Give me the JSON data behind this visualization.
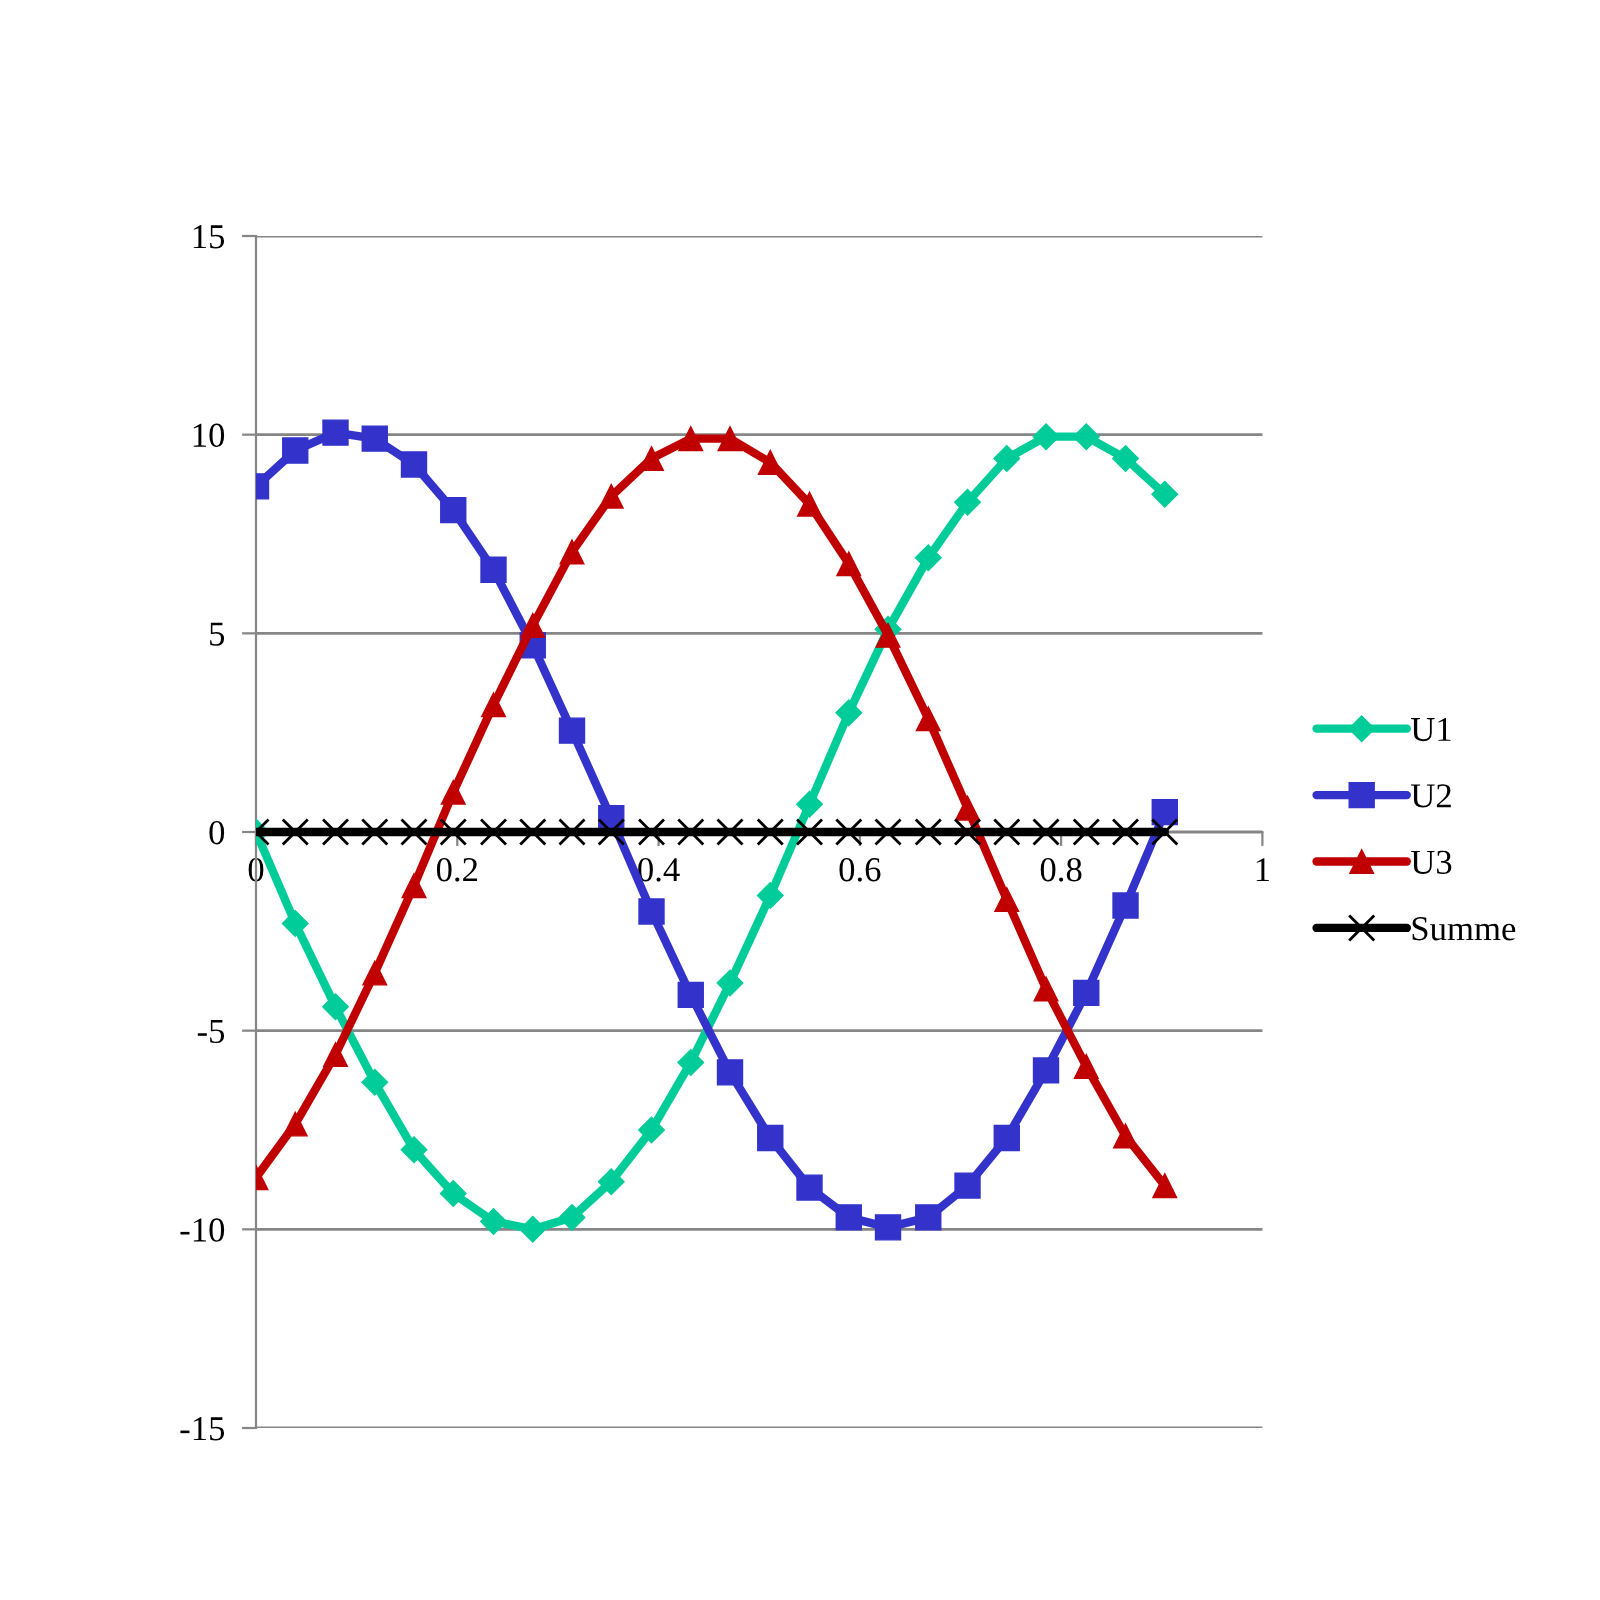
{
  "chart_data": {
    "type": "line",
    "x": [
      0,
      0.039,
      0.079,
      0.118,
      0.157,
      0.196,
      0.236,
      0.275,
      0.314,
      0.353,
      0.393,
      0.432,
      0.471,
      0.511,
      0.55,
      0.589,
      0.628,
      0.668,
      0.707,
      0.746,
      0.785,
      0.825,
      0.864,
      0.903
    ],
    "xlim": [
      0,
      1
    ],
    "xticks": [
      0,
      0.2,
      0.4,
      0.6,
      0.8,
      1
    ],
    "ylim": [
      -15,
      15
    ],
    "yticks": [
      -15,
      -10,
      -5,
      0,
      5,
      10,
      15
    ],
    "grid": "y",
    "legend": "right",
    "series": [
      {
        "name": "U1",
        "color": "#00cc99",
        "marker": "diamond",
        "values": [
          0,
          -2.3,
          -4.4,
          -6.3,
          -8.0,
          -9.1,
          -9.8,
          -10.0,
          -9.7,
          -8.8,
          -7.5,
          -5.8,
          -3.8,
          -1.6,
          0.7,
          3.0,
          5.1,
          6.9,
          8.3,
          9.4,
          9.95,
          9.95,
          9.4,
          8.5
        ]
      },
      {
        "name": "U2",
        "color": "#3333cc",
        "marker": "square",
        "values": [
          8.7,
          9.6,
          10.05,
          9.9,
          9.25,
          8.1,
          6.6,
          4.7,
          2.55,
          0.35,
          -2.0,
          -4.1,
          -6.05,
          -7.7,
          -8.95,
          -9.7,
          -9.95,
          -9.7,
          -8.9,
          -7.7,
          -6.0,
          -4.05,
          -1.85,
          0.5
        ]
      },
      {
        "name": "U3",
        "color": "#c00000",
        "marker": "triangle",
        "values": [
          -8.7,
          -7.35,
          -5.6,
          -3.55,
          -1.35,
          1.0,
          3.2,
          5.2,
          7.05,
          8.45,
          9.4,
          9.9,
          9.9,
          9.3,
          8.25,
          6.75,
          4.95,
          2.85,
          0.6,
          -1.7,
          -3.95,
          -5.9,
          -7.65,
          -8.9
        ]
      },
      {
        "name": "Summe",
        "color": "#000000",
        "marker": "cross",
        "values": [
          0,
          0,
          0,
          0,
          0,
          0,
          0,
          0,
          0,
          0,
          0,
          0,
          0,
          0,
          0,
          0,
          0,
          0,
          0,
          0,
          0,
          0,
          0,
          0
        ]
      }
    ]
  }
}
